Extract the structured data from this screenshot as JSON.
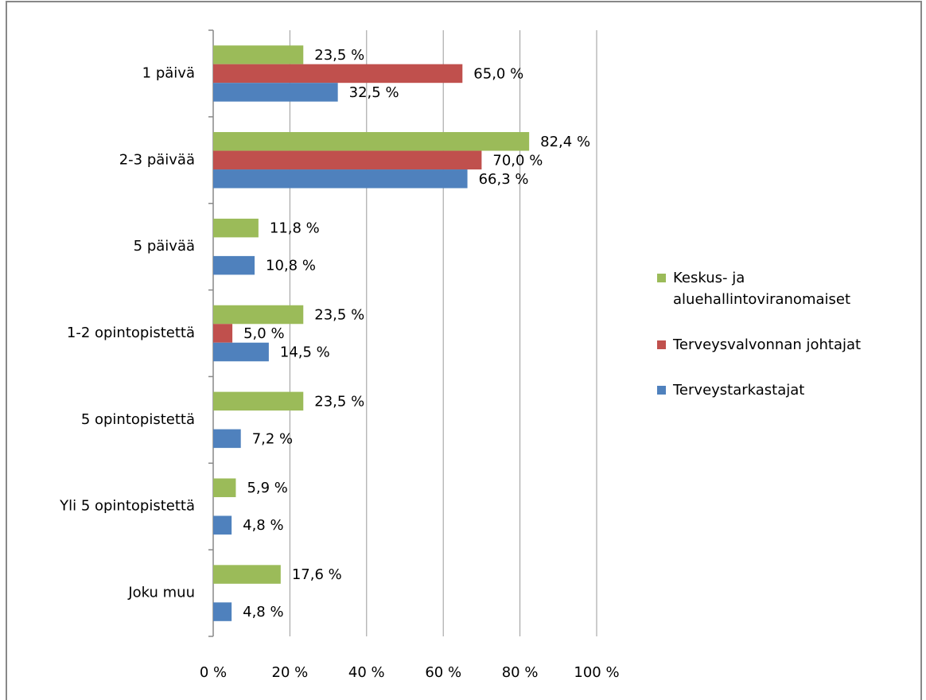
{
  "chart_data": {
    "type": "bar",
    "orientation": "horizontal",
    "categories": [
      "1 päivä",
      "2-3 päivää",
      "5 päivää",
      "1-2 opintopistettä",
      "5 opintopistettä",
      "Yli 5 opintopistettä",
      "Joku muu"
    ],
    "series": [
      {
        "name": "Keskus- ja aluehallintoviranomaiset",
        "color": "#9bbb59",
        "values": [
          23.5,
          82.4,
          11.8,
          23.5,
          23.5,
          5.9,
          17.6
        ],
        "value_labels": [
          "23,5 %",
          "82,4 %",
          "11,8 %",
          "23,5 %",
          "23,5 %",
          "5,9 %",
          "17,6 %"
        ]
      },
      {
        "name": "Terveysvalvonnan johtajat",
        "color": "#c0504d",
        "values": [
          65.0,
          70.0,
          null,
          5.0,
          null,
          null,
          null
        ],
        "value_labels": [
          "65,0 %",
          "70,0 %",
          null,
          "5,0 %",
          null,
          null,
          null
        ]
      },
      {
        "name": "Terveystarkastajat",
        "color": "#4f81bd",
        "values": [
          32.5,
          66.3,
          10.8,
          14.5,
          7.2,
          4.8,
          4.8
        ],
        "value_labels": [
          "32,5 %",
          "66,3 %",
          "10,8 %",
          "14,5 %",
          "7,2 %",
          "4,8 %",
          "4,8 %"
        ]
      }
    ],
    "xlim": [
      0,
      100
    ],
    "xticks": [
      {
        "value": 0,
        "label": "0 %"
      },
      {
        "value": 20,
        "label": "20 %"
      },
      {
        "value": 40,
        "label": "40 %"
      },
      {
        "value": 60,
        "label": "60 %"
      },
      {
        "value": 80,
        "label": "80 %"
      },
      {
        "value": 100,
        "label": "100 %"
      }
    ],
    "grid": true,
    "legend": "right"
  }
}
